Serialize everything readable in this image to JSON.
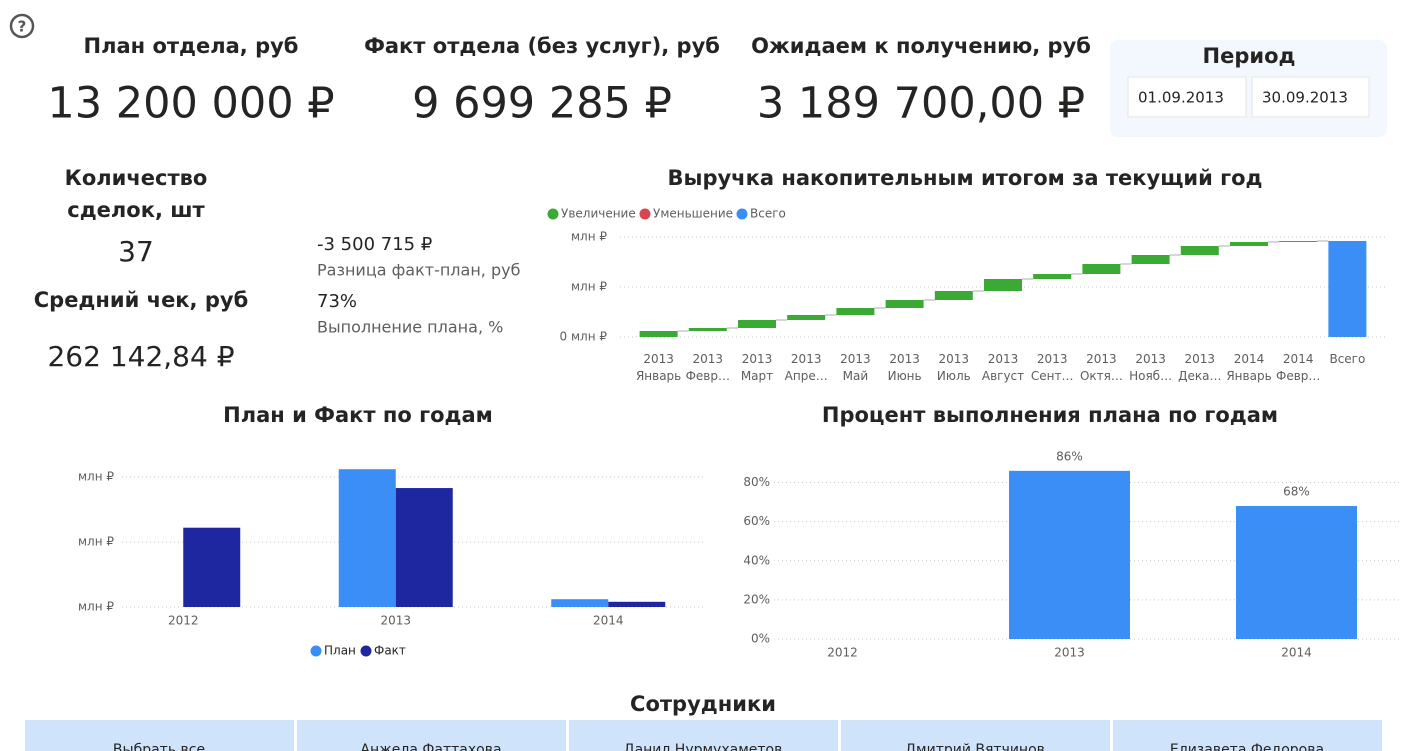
{
  "kpis": [
    {
      "title": "План отдела, руб",
      "value": "13 200 000 ₽"
    },
    {
      "title": "Факт отдела (без услуг), руб",
      "value": "9 699 285 ₽"
    },
    {
      "title": "Ожидаем к получению, руб",
      "value": "3 189 700,00 ₽"
    }
  ],
  "period": {
    "title": "Период",
    "start": "01.09.2013",
    "end": "30.09.2013"
  },
  "deals": {
    "title_lines": [
      "Количество",
      "сделок, шт"
    ],
    "value": "37"
  },
  "avg_check": {
    "title": "Средний чек, руб",
    "value": "262 142,84 ₽"
  },
  "cards": [
    {
      "value": "-3 500 715 ₽",
      "label": "Разница факт-план, руб"
    },
    {
      "value": "73%",
      "label": "Выполнение плана, %"
    }
  ],
  "employees": {
    "title": "Сотрудники",
    "items": [
      "Выбрать все",
      "Анжела Фаттахова",
      "Данил Нурмухаметов",
      "Дмитрий Вятчинов",
      "Елизавета Федорова"
    ]
  },
  "chart_data": [
    {
      "type": "waterfall",
      "title": "Выручка накопительным итогом за текущий год",
      "legend": [
        {
          "name": "Увеличение",
          "color": "#3aaa35"
        },
        {
          "name": "Уменьшение",
          "color": "#d64550"
        },
        {
          "name": "Всего",
          "color": "#3a8ef6"
        }
      ],
      "categories": [
        [
          "2013",
          "Январь"
        ],
        [
          "2013",
          "Февр…"
        ],
        [
          "2013",
          "Март"
        ],
        [
          "2013",
          "Апре…"
        ],
        [
          "2013",
          "Май"
        ],
        [
          "2013",
          "Июнь"
        ],
        [
          "2013",
          "Июль"
        ],
        [
          "2013",
          "Август"
        ],
        [
          "2013",
          "Сент…"
        ],
        [
          "2013",
          "Октя…"
        ],
        [
          "2013",
          "Нояб…"
        ],
        [
          "2013",
          "Дека…"
        ],
        [
          "2014",
          "Январь"
        ],
        [
          "2014",
          "Февр…"
        ],
        [
          "Всего"
        ]
      ],
      "values": [
        1.2,
        0.6,
        1.6,
        1.0,
        1.4,
        1.6,
        1.8,
        2.4,
        1.0,
        2.0,
        1.8,
        1.8,
        0.8,
        0.2,
        19.2
      ],
      "ylim": [
        0,
        20
      ],
      "yticks": [
        {
          "value": 0,
          "label": "0 млн ₽"
        },
        {
          "value": 10,
          "label": "млн ₽"
        },
        {
          "value": 20,
          "label": "млн ₽"
        }
      ],
      "grid": true
    },
    {
      "type": "bar",
      "title": "План и Факт по годам",
      "categories": [
        "2012",
        "2013",
        "2014"
      ],
      "series": [
        {
          "name": "План",
          "color": "#3a8ef6",
          "values": [
            null,
            21.2,
            1.2
          ]
        },
        {
          "name": "Факт",
          "color": "#1f27a0",
          "values": [
            12.2,
            18.3,
            0.8
          ]
        }
      ],
      "ylim": [
        0,
        22
      ],
      "yticks": [
        {
          "value": 0,
          "label": "млн ₽"
        },
        {
          "value": 10,
          "label": "млн ₽"
        },
        {
          "value": 20,
          "label": "млн ₽"
        }
      ],
      "grid": true
    },
    {
      "type": "bar",
      "title": "Процент выполнения плана по годам",
      "categories": [
        "2012",
        "2013",
        "2014"
      ],
      "series": [
        {
          "name": "Процент",
          "color": "#3a8ef6",
          "values": [
            null,
            86,
            68
          ],
          "value_labels": [
            null,
            "86%",
            "68%"
          ]
        }
      ],
      "ylim": [
        0,
        90
      ],
      "yticks": [
        {
          "value": 0,
          "label": "0%"
        },
        {
          "value": 20,
          "label": "20%"
        },
        {
          "value": 40,
          "label": "40%"
        },
        {
          "value": 60,
          "label": "60%"
        },
        {
          "value": 80,
          "label": "80%"
        }
      ],
      "grid": true
    }
  ]
}
